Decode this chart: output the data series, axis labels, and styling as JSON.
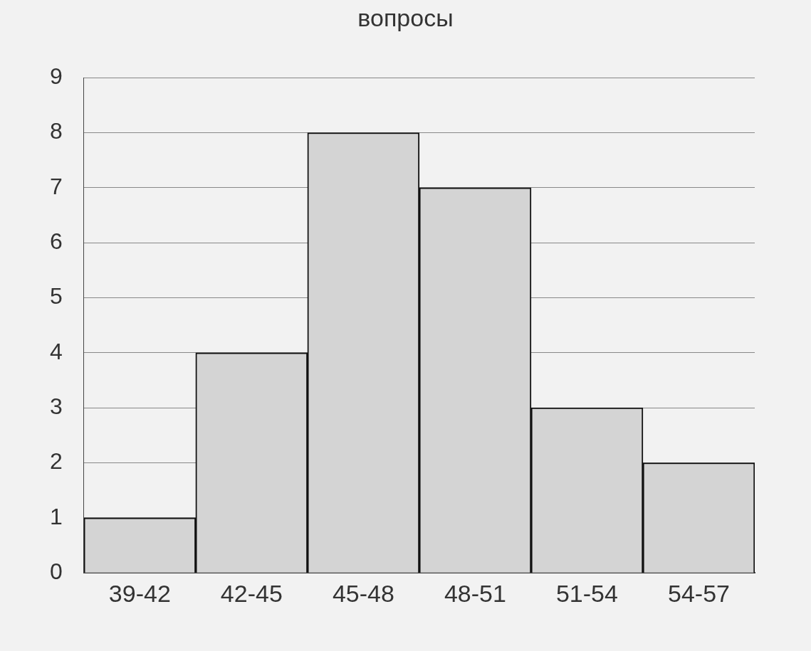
{
  "chart_data": {
    "type": "bar",
    "title": "вопросы",
    "categories": [
      "39-42",
      "42-45",
      "45-48",
      "48-51",
      "51-54",
      "54-57"
    ],
    "values": [
      1,
      4,
      8,
      7,
      3,
      2
    ],
    "color": "#d4d4d4",
    "ylim": [
      0,
      9
    ],
    "yticks": [
      0,
      1,
      2,
      3,
      4,
      5,
      6,
      7,
      8,
      9
    ],
    "grid": "y",
    "legend": false
  }
}
